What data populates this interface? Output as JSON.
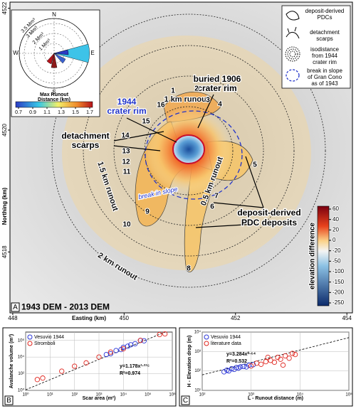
{
  "map": {
    "panel_label": "A",
    "title": "1943 DEM - 2013 DEM",
    "easting": {
      "label": "Easting (km)",
      "ticks": [
        448,
        450,
        452,
        454
      ],
      "lim": [
        447.95,
        454.1
      ]
    },
    "northing": {
      "label": "Northing (km)",
      "ticks": [
        4518,
        4520,
        4522
      ],
      "lim": [
        4517.0,
        4522.1
      ]
    },
    "annotations": [
      "buried 1906",
      "crater rim",
      "1944",
      "crater rim",
      "detachment",
      "scarps",
      "deposit-derived",
      "PDC deposits",
      "break in slope"
    ],
    "runout_labels": [
      "0.5 km runout",
      "1 km runout",
      "1.5 km runout",
      "2 km runout"
    ],
    "scarp_numbers": [
      "1",
      "2",
      "3",
      "4",
      "5",
      "6",
      "7",
      "8",
      "9",
      "10",
      "11",
      "12",
      "13",
      "14",
      "15",
      "16"
    ],
    "legend": [
      [
        "deposit-derived",
        "PDCs"
      ],
      [
        "detachment",
        "scarps"
      ],
      [
        "isodistance",
        "from 1944",
        "crater rim"
      ],
      [
        "break in slope",
        "of Gran Cono",
        "as of 1943"
      ]
    ],
    "colorbar": {
      "label": "elevation difference",
      "ticks": [
        60,
        40,
        20,
        0,
        -20,
        -50,
        -100,
        -150,
        -200,
        -250
      ]
    },
    "rose": {
      "directions": [
        "N",
        "E",
        "S",
        "W"
      ],
      "rings": [
        "1 Mm³",
        "2 Mm³",
        "3 Mm³",
        "3.5 Mm³"
      ],
      "colorbar_label": [
        "Max Runout",
        "Distance (km)"
      ],
      "colorbar_ticks": [
        0.7,
        0.9,
        1.1,
        1.3,
        1.5,
        1.7
      ]
    }
  },
  "chart_data": [
    {
      "type": "scatter",
      "panel_label": "B",
      "xlabel": "Scar area (m²)",
      "ylabel": "Avalanche volume (m³)",
      "log_x": true,
      "log_y": true,
      "grid": true,
      "xlim": [
        1,
        1000000
      ],
      "ylim": [
        1,
        10000000
      ],
      "xticks": [
        {
          "value": 1,
          "label": "10⁰"
        },
        {
          "value": 10,
          "label": "10¹"
        },
        {
          "value": 100,
          "label": "10²"
        },
        {
          "value": 1000,
          "label": "10³"
        },
        {
          "value": 10000,
          "label": "10⁴"
        },
        {
          "value": 100000,
          "label": "10⁵"
        },
        {
          "value": 1000000,
          "label": "10⁶"
        }
      ],
      "yticks": [
        {
          "value": 1,
          "label": "10⁰"
        },
        {
          "value": 100,
          "label": "10²"
        },
        {
          "value": 10000,
          "label": "10⁴"
        },
        {
          "value": 1000000,
          "label": "10⁶"
        }
      ],
      "series": [
        {
          "name": "Vesuvio 1944",
          "color": "#2a35d8",
          "x": [
            2000,
            3000,
            5000,
            8000,
            10000,
            15000,
            20000,
            30000,
            50000,
            70000
          ],
          "values": [
            20000,
            25000,
            60000,
            80000,
            150000,
            200000,
            300000,
            400000,
            1000000,
            900000
          ]
        },
        {
          "name": "Stromboli",
          "color": "#e0261f",
          "x": [
            3,
            5,
            30,
            100,
            300,
            1000,
            3000,
            10000,
            50000,
            300000,
            500000
          ],
          "values": [
            20,
            30,
            200,
            800,
            2000,
            10000,
            40000,
            100000,
            1000000,
            5000000,
            6000000
          ]
        }
      ],
      "fit": {
        "label": "y=1.178x¹·²¹⁵",
        "r2_label": "R²=0.974",
        "coef": 1.178,
        "exp": 1.215
      }
    },
    {
      "type": "scatter",
      "panel_label": "C",
      "xlabel": "L - Runout distance (m)",
      "ylabel": "H - Elevation drop (m)",
      "log_x": true,
      "log_y": true,
      "grid": true,
      "xlim": [
        100,
        100000
      ],
      "ylim": [
        10,
        10000
      ],
      "xticks": [
        {
          "value": 100,
          "label": "10²"
        },
        {
          "value": 1000,
          "label": "10³"
        },
        {
          "value": 10000,
          "label": "10⁴"
        },
        {
          "value": 100000,
          "label": "10⁵"
        }
      ],
      "yticks": [
        {
          "value": 10,
          "label": "10¹"
        },
        {
          "value": 100,
          "label": "10²"
        },
        {
          "value": 1000,
          "label": "10³"
        },
        {
          "value": 10000,
          "label": "10⁴"
        }
      ],
      "series": [
        {
          "name": "Vesuvio 1944",
          "color": "#2a35d8",
          "x": [
            280,
            320,
            350,
            400,
            450,
            500,
            550,
            600,
            700,
            800,
            900,
            1100
          ],
          "values": [
            90,
            110,
            100,
            130,
            120,
            150,
            140,
            160,
            170,
            160,
            200,
            210
          ]
        },
        {
          "name": "literature data",
          "color": "#e0261f",
          "x": [
            1000,
            1300,
            1600,
            2000,
            2500,
            3000,
            3500,
            4000,
            5000,
            6000,
            7000,
            8000,
            4500,
            2200
          ],
          "values": [
            180,
            250,
            220,
            300,
            350,
            280,
            500,
            400,
            600,
            450,
            800,
            700,
            200,
            500
          ]
        }
      ],
      "fit": {
        "label": "y=3.284x⁰·⁶⁴",
        "r2_label": "R²=0.532",
        "coef": 3.284,
        "exp": 0.64
      }
    }
  ]
}
